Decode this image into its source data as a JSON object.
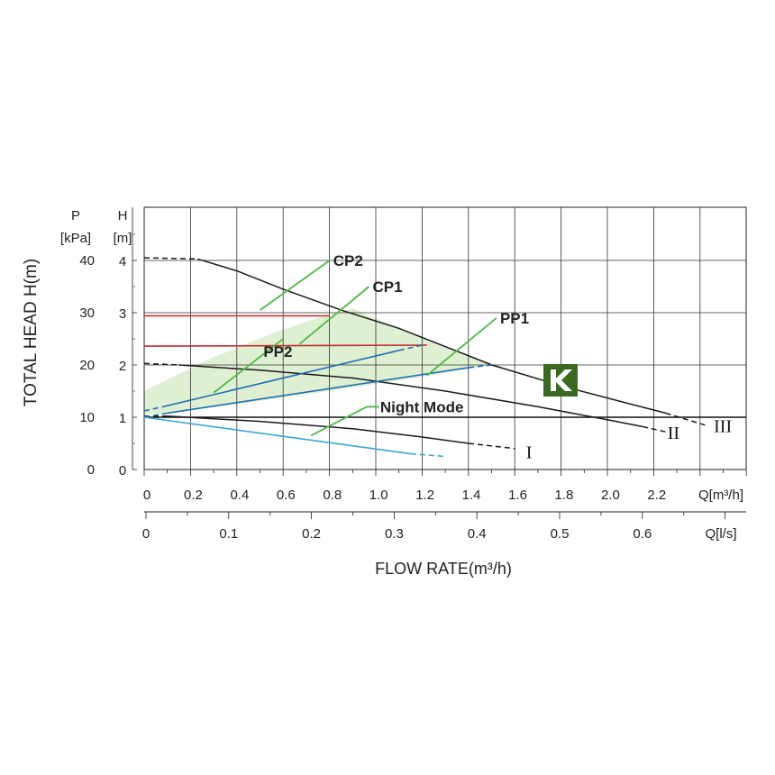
{
  "chart_data": {
    "type": "line",
    "y_title": "TOTAL HEAD H(m)",
    "x_title": "FLOW RATE(m³/h)",
    "y_left_label_top": "P",
    "y_left_label_unit": "[kPa]",
    "y_right_label_top": "H",
    "y_right_label_unit": "[m]",
    "x_axis_label": "Q[m³/h]",
    "x2_axis_label": "Q[l/s]",
    "xlim": [
      0,
      2.6
    ],
    "ylim": [
      0,
      4.7
    ],
    "x_ticks": [
      "0",
      "0.2",
      "0.4",
      "0.6",
      "0.8",
      "1.0",
      "1.2",
      "1.4",
      "1.6",
      "1.8",
      "2.0",
      "2.2"
    ],
    "x_tick_values": [
      0,
      0.2,
      0.4,
      0.6,
      0.8,
      1.0,
      1.2,
      1.4,
      1.6,
      1.8,
      2.0,
      2.2
    ],
    "x2_ticks": [
      "0",
      "0.1",
      "0.2",
      "0.3",
      "0.4",
      "0.5",
      "0.6"
    ],
    "x2_tick_values": [
      0,
      0.1,
      0.2,
      0.3,
      0.4,
      0.5,
      0.6
    ],
    "h_ticks": [
      "0",
      "1",
      "2",
      "3",
      "4"
    ],
    "h_tick_values": [
      0,
      1,
      2,
      3,
      4
    ],
    "p_ticks": [
      "0",
      "10",
      "20",
      "30",
      "40"
    ],
    "p_tick_values": [
      0,
      1,
      2,
      3,
      4
    ],
    "grid": true,
    "series": [
      {
        "name": "III",
        "color": "#1a1a1a",
        "dashed_start": [
          [
            0,
            4.05
          ],
          [
            0.23,
            4.03
          ]
        ],
        "points": [
          [
            0.23,
            4.03
          ],
          [
            0.4,
            3.8
          ],
          [
            0.6,
            3.45
          ],
          [
            0.85,
            3.05
          ],
          [
            1.1,
            2.7
          ],
          [
            1.5,
            2.0
          ],
          [
            1.8,
            1.6
          ],
          [
            2.1,
            1.25
          ],
          [
            2.25,
            1.08
          ]
        ],
        "dashed_end": [
          [
            2.25,
            1.08
          ],
          [
            2.42,
            0.85
          ]
        ]
      },
      {
        "name": "II",
        "color": "#1a1a1a",
        "dashed_start": [
          [
            0,
            2.03
          ],
          [
            0.15,
            2.0
          ]
        ],
        "points": [
          [
            0.15,
            2.0
          ],
          [
            0.5,
            1.9
          ],
          [
            0.9,
            1.75
          ],
          [
            1.3,
            1.5
          ],
          [
            1.7,
            1.2
          ],
          [
            2.0,
            0.95
          ],
          [
            2.15,
            0.82
          ]
        ],
        "dashed_end": [
          [
            2.15,
            0.82
          ],
          [
            2.25,
            0.72
          ]
        ]
      },
      {
        "name": "I",
        "color": "#1a1a1a",
        "dashed_start": [
          [
            0,
            1.02
          ],
          [
            0.1,
            1.02
          ]
        ],
        "points": [
          [
            0.1,
            1.02
          ],
          [
            0.5,
            0.92
          ],
          [
            0.9,
            0.78
          ],
          [
            1.2,
            0.62
          ],
          [
            1.4,
            0.5
          ]
        ],
        "dashed_end": [
          [
            1.4,
            0.5
          ],
          [
            1.6,
            0.4
          ]
        ]
      },
      {
        "name": "CP2",
        "color": "#c42a2a",
        "points": [
          [
            0,
            2.94
          ],
          [
            0.8,
            2.94
          ]
        ]
      },
      {
        "name": "CP1",
        "color": "#c42a2a",
        "points": [
          [
            0,
            2.36
          ],
          [
            1.22,
            2.38
          ]
        ]
      },
      {
        "name": "PP2",
        "color": "#1f6fb5",
        "dashed_start": [
          [
            0,
            1.12
          ],
          [
            0.08,
            1.2
          ]
        ],
        "points": [
          [
            0.08,
            1.2
          ],
          [
            1.1,
            2.28
          ]
        ],
        "dashed_end": [
          [
            1.1,
            2.28
          ],
          [
            1.2,
            2.38
          ]
        ]
      },
      {
        "name": "PP1",
        "color": "#1f6fb5",
        "dashed_start": [
          [
            0,
            1.0
          ],
          [
            0.1,
            1.08
          ]
        ],
        "points": [
          [
            0.1,
            1.08
          ],
          [
            1.4,
            1.95
          ]
        ],
        "dashed_end": [
          [
            1.4,
            1.95
          ],
          [
            1.5,
            2.0
          ]
        ]
      },
      {
        "name": "Night Mode",
        "color": "#39a6d6",
        "points": [
          [
            0,
            1.0
          ],
          [
            1.15,
            0.3
          ]
        ],
        "dashed_end": [
          [
            1.15,
            0.3
          ],
          [
            1.3,
            0.25
          ]
        ]
      }
    ],
    "shaded_region": {
      "color": "#d9ecc9",
      "points": [
        [
          0,
          1.05
        ],
        [
          0,
          1.5
        ],
        [
          0.3,
          2.15
        ],
        [
          0.55,
          2.6
        ],
        [
          0.75,
          2.9
        ],
        [
          0.9,
          3.08
        ],
        [
          1.1,
          2.7
        ],
        [
          1.3,
          2.35
        ],
        [
          1.5,
          2.0
        ],
        [
          1.2,
          1.77
        ],
        [
          0.8,
          1.5
        ],
        [
          0.4,
          1.25
        ],
        [
          0.1,
          1.08
        ]
      ]
    },
    "callouts": [
      {
        "text": "CP2",
        "target": [
          0.5,
          3.05
        ],
        "anchor": [
          0.8,
          4.0
        ]
      },
      {
        "text": "CP1",
        "target": [
          0.67,
          2.4
        ],
        "anchor": [
          0.97,
          3.5
        ]
      },
      {
        "text": "PP2",
        "target": [
          0.3,
          1.47
        ],
        "anchor": [
          0.6,
          2.5
        ]
      },
      {
        "text": "PP1",
        "target": [
          1.22,
          1.8
        ],
        "anchor": [
          1.52,
          2.9
        ]
      },
      {
        "text": "Night Mode",
        "target": [
          0.72,
          0.65
        ],
        "anchor": [
          0.96,
          1.2
        ]
      }
    ],
    "curve_labels": [
      {
        "text": "I",
        "x": 1.64,
        "y": 0.35
      },
      {
        "text": "II",
        "x": 2.25,
        "y": 0.72
      },
      {
        "text": "III",
        "x": 2.45,
        "y": 0.85
      }
    ],
    "logo_text": "K",
    "logo_color": "#3a6a1f"
  }
}
